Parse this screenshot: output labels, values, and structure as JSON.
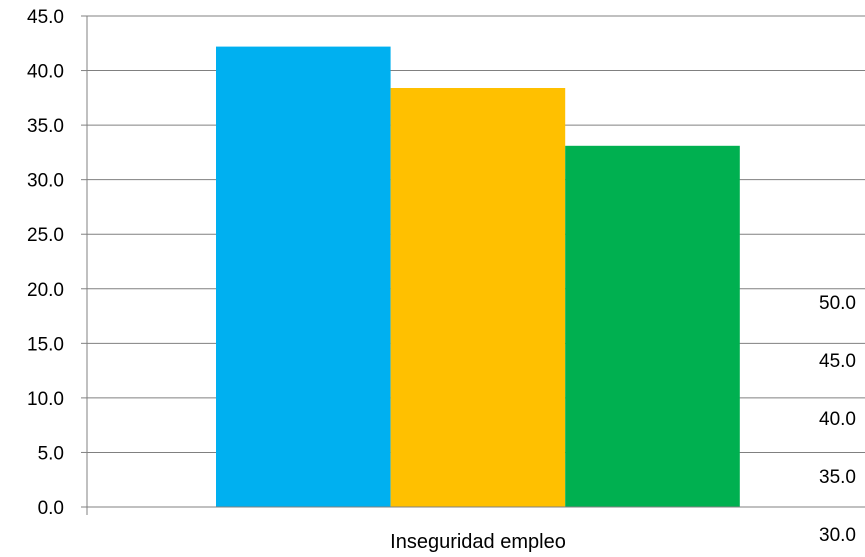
{
  "chart_data": {
    "type": "bar",
    "categories": [
      "Inseguridad empleo"
    ],
    "series": [
      {
        "values": [
          42.2
        ],
        "color": "#00B0F0"
      },
      {
        "values": [
          38.4
        ],
        "color": "#FFC000"
      },
      {
        "values": [
          33.1
        ],
        "color": "#00B050"
      }
    ],
    "ylim": [
      0,
      45
    ],
    "y_ticks": [
      "0.0",
      "5.0",
      "10.0",
      "15.0",
      "20.0",
      "25.0",
      "30.0",
      "35.0",
      "40.0",
      "45.0"
    ],
    "secondary_tick_labels": [
      "50.0",
      "45.0",
      "40.0",
      "35.0",
      "30.0"
    ],
    "grid": true,
    "legend": "none"
  }
}
